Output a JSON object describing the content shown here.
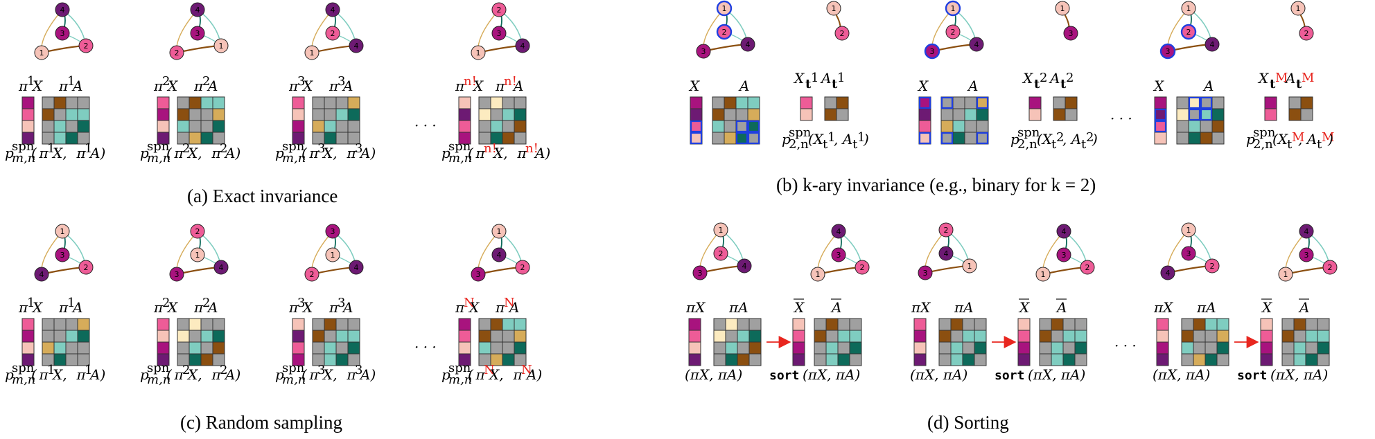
{
  "palette": {
    "c1": "#f6c3b8",
    "c2": "#ee5c97",
    "c3": "#a8137e",
    "c4": "#6d1a73",
    "gray": "#a0a0a0",
    "teal_dark": "#0d6a5a",
    "teal_light": "#7fcdc0",
    "brown": "#8b4f10",
    "tan": "#d6ac5a",
    "cream": "#fcebc0",
    "blue": "#1f3fe0",
    "red": "#e8261f"
  },
  "captions": {
    "a": "(a) Exact invariance",
    "b": "(b) k-ary invariance (e.g., binary for k = 2)",
    "c": "(c) Random sampling",
    "d": "(d) Sorting"
  },
  "ellipsis": "· · ·",
  "panel_a": {
    "items": [
      {
        "sup": "1",
        "pX": "π",
        "pA": "π",
        "func_pre": "p",
        "func_sup": "spn",
        "func_sub": "m,n",
        "func_args": "(π¹X, π¹A)"
      },
      {
        "sup": "2",
        "pX": "π",
        "pA": "π",
        "func_pre": "p",
        "func_sup": "spn",
        "func_sub": "m,n",
        "func_args": "(π²X, π²A)"
      },
      {
        "sup": "3",
        "pX": "π",
        "pA": "π",
        "func_pre": "p",
        "func_sup": "spn",
        "func_sub": "m,n",
        "func_args": "(π³X, π³A)"
      },
      {
        "sup": "n!",
        "pX": "π",
        "pA": "π",
        "func_pre": "p",
        "func_sup": "spn",
        "func_sub": "m,n",
        "func_args": "(πⁿ!X, πⁿ!A)"
      }
    ],
    "label_X": "X",
    "label_A": "A"
  },
  "panel_b": {
    "full_labels": [
      "X",
      "A"
    ],
    "subsets": [
      {
        "X": "X",
        "A": "A",
        "sub": "t",
        "sup": "1",
        "func": "p",
        "func_sup": "spn",
        "func_sub": "2,n",
        "args_pre": "(X",
        "args_mid": ", A",
        "args_post": ")"
      },
      {
        "X": "X",
        "A": "A",
        "sub": "t",
        "sup": "2",
        "func": "p",
        "func_sup": "spn",
        "func_sub": "2,n",
        "args_pre": "(X",
        "args_mid": ", A",
        "args_post": ")"
      },
      {
        "X": "X",
        "A": "A",
        "sub": "t",
        "sup": "M",
        "func": "p",
        "func_sup": "spn",
        "func_sub": "2,n",
        "args_pre": "(X",
        "args_mid": ", A",
        "args_post": ")"
      }
    ]
  },
  "panel_c": {
    "items": [
      {
        "sup": "1"
      },
      {
        "sup": "2"
      },
      {
        "sup": "3"
      },
      {
        "sup": "N"
      }
    ]
  },
  "panel_d": {
    "left_X": "πX",
    "left_A": "πA",
    "right_X": "X",
    "right_A": "A",
    "left_func": "(πX, πA)",
    "sort_word": "sort",
    "right_func": "(πX, πA)"
  }
}
